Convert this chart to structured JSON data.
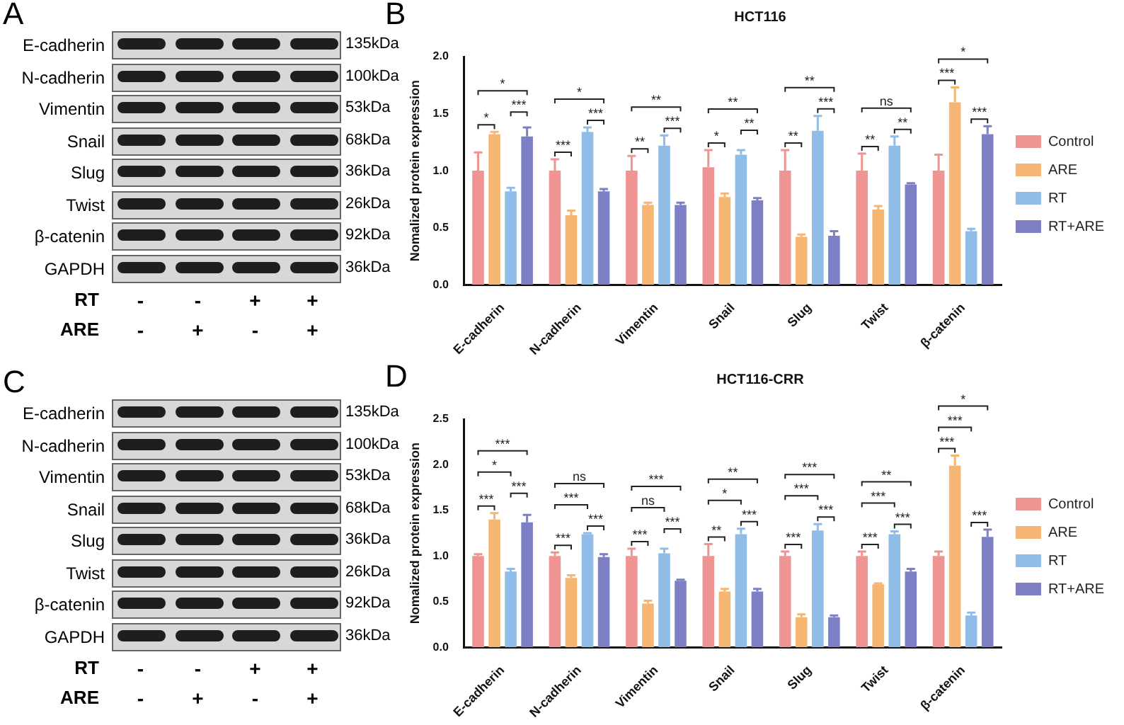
{
  "chart_data": [
    {
      "type": "other",
      "y_categories": [
        "E-cadherin",
        "N-cadherin",
        "Vimentin",
        "Snail",
        "Slug",
        "Twist",
        "β-catenin",
        "GAPDH"
      ],
      "y2_categories": [
        "135kDa",
        "100kDa",
        "53kDa",
        "68kDa",
        "36kDa",
        "26kDa",
        "92kDa",
        "36kDa"
      ],
      "annotations": [
        "A",
        "RT",
        "-",
        "-",
        "+",
        "+",
        "ARE",
        "-",
        "+",
        "-",
        "+"
      ]
    },
    {
      "type": "bar",
      "title": "HCT116",
      "ylabel": "Nomalized protein expression",
      "categories": [
        "E-cadherin",
        "N-cadherin",
        "Vimentin",
        "Snail",
        "Slug",
        "Twist",
        "β-catenin"
      ],
      "ylim": [
        0,
        2
      ],
      "yticks": [
        {
          "value": 0,
          "label": "0.0"
        },
        0.5,
        {
          "value": 1,
          "label": "1.0"
        },
        1.5,
        {
          "value": 2,
          "label": "2.0"
        }
      ],
      "legend": "right",
      "series": [
        {
          "name": "Control",
          "color": "#f09393",
          "values": [
            1.0,
            1.0,
            1.0,
            1.03,
            1.0,
            1.0,
            1.0
          ],
          "errors": [
            [
              1.0,
              1.16
            ],
            [
              1.0,
              1.1
            ],
            [
              1.0,
              1.13
            ],
            [
              1.03,
              1.18
            ],
            [
              1.0,
              1.18
            ],
            [
              1.0,
              1.15
            ],
            [
              1.0,
              1.14
            ]
          ]
        },
        {
          "name": "ARE",
          "color": "#f5b673",
          "values": [
            1.32,
            0.61,
            0.7,
            0.77,
            0.42,
            0.66,
            1.6
          ],
          "errors": [
            [
              1.32,
              1.34
            ],
            [
              0.61,
              0.65
            ],
            [
              0.7,
              0.72
            ],
            [
              0.77,
              0.8
            ],
            [
              0.42,
              0.44
            ],
            [
              0.66,
              0.69
            ],
            [
              1.6,
              1.73
            ]
          ]
        },
        {
          "name": "RT",
          "color": "#8fbde8",
          "values": [
            0.82,
            1.34,
            1.22,
            1.14,
            1.35,
            1.22,
            0.47
          ],
          "errors": [
            [
              0.82,
              0.85
            ],
            [
              1.34,
              1.38
            ],
            [
              1.22,
              1.31
            ],
            [
              1.14,
              1.18
            ],
            [
              1.35,
              1.48
            ],
            [
              1.22,
              1.3
            ],
            [
              0.47,
              0.49
            ]
          ]
        },
        {
          "name": "RT+ARE",
          "color": "#7d80c4",
          "values": [
            1.3,
            0.82,
            0.7,
            0.74,
            0.43,
            0.88,
            1.32
          ],
          "errors": [
            [
              1.3,
              1.38
            ],
            [
              0.82,
              0.84
            ],
            [
              0.7,
              0.72
            ],
            [
              0.74,
              0.76
            ],
            [
              0.43,
              0.47
            ],
            [
              0.88,
              0.89
            ],
            [
              1.32,
              1.39
            ]
          ]
        }
      ],
      "annotations": [
        "B",
        "*",
        "*",
        "***",
        "*",
        "***",
        "***",
        "**",
        "***",
        "**",
        "**",
        "*",
        "**",
        "**",
        "***",
        "**",
        "ns",
        "**",
        "**",
        "*",
        "***",
        "***"
      ]
    },
    {
      "type": "other",
      "y_categories": [
        "E-cadherin",
        "N-cadherin",
        "Vimentin",
        "Snail",
        "Slug",
        "Twist",
        "β-catenin",
        "GAPDH"
      ],
      "y2_categories": [
        "135kDa",
        "100kDa",
        "53kDa",
        "68kDa",
        "36kDa",
        "26kDa",
        "92kDa",
        "36kDa"
      ],
      "annotations": [
        "C",
        "RT",
        "-",
        "-",
        "+",
        "+",
        "ARE",
        "-",
        "+",
        "-",
        "+"
      ]
    },
    {
      "type": "bar",
      "title": "HCT116-CRR",
      "ylabel": "Nomalized protein expression",
      "categories": [
        "E-cadherin",
        "N-cadherin",
        "Vimentin",
        "Snail",
        "Slug",
        "Twist",
        "β-catenin"
      ],
      "ylim": [
        0,
        2.5
      ],
      "yticks": [
        {
          "value": 0,
          "label": "0.0"
        },
        0.5,
        {
          "value": 1,
          "label": "1.0"
        },
        1.5,
        {
          "value": 2,
          "label": "2.0"
        },
        2.5
      ],
      "legend": "right",
      "series": [
        {
          "name": "Control",
          "color": "#f09393",
          "values": [
            1.0,
            1.0,
            1.0,
            1.0,
            1.0,
            1.0,
            1.0
          ],
          "errors": [
            [
              1.0,
              1.02
            ],
            [
              1.0,
              1.04
            ],
            [
              1.0,
              1.08
            ],
            [
              1.0,
              1.13
            ],
            [
              1.0,
              1.05
            ],
            [
              1.0,
              1.05
            ],
            [
              1.0,
              1.05
            ]
          ]
        },
        {
          "name": "ARE",
          "color": "#f5b673",
          "values": [
            1.4,
            0.76,
            0.48,
            0.61,
            0.33,
            0.69,
            1.99
          ],
          "errors": [
            [
              1.4,
              1.47
            ],
            [
              0.76,
              0.79
            ],
            [
              0.48,
              0.51
            ],
            [
              0.61,
              0.64
            ],
            [
              0.33,
              0.36
            ],
            [
              0.69,
              0.7
            ],
            [
              1.99,
              2.1
            ]
          ]
        },
        {
          "name": "RT",
          "color": "#8fbde8",
          "values": [
            0.83,
            1.24,
            1.03,
            1.24,
            1.28,
            1.24,
            0.35
          ],
          "errors": [
            [
              0.83,
              0.86
            ],
            [
              1.24,
              1.25
            ],
            [
              1.03,
              1.08
            ],
            [
              1.24,
              1.3
            ],
            [
              1.28,
              1.35
            ],
            [
              1.24,
              1.27
            ],
            [
              0.35,
              0.38
            ]
          ]
        },
        {
          "name": "RT+ARE",
          "color": "#7d80c4",
          "values": [
            1.37,
            0.99,
            0.73,
            0.61,
            0.33,
            0.83,
            1.21
          ],
          "errors": [
            [
              1.37,
              1.45
            ],
            [
              0.99,
              1.02
            ],
            [
              0.73,
              0.74
            ],
            [
              0.61,
              0.64
            ],
            [
              0.33,
              0.35
            ],
            [
              0.83,
              0.86
            ],
            [
              1.21,
              1.29
            ]
          ]
        }
      ],
      "annotations": [
        "D",
        "***",
        "*",
        "***",
        "***",
        "ns",
        "***",
        "***",
        "***",
        "***",
        "ns",
        "***",
        "***",
        "**",
        "*",
        "***",
        "**",
        "***",
        "***",
        "***",
        "***",
        "**",
        "***",
        "***",
        "***",
        "*",
        "***",
        "***",
        "***"
      ]
    }
  ]
}
